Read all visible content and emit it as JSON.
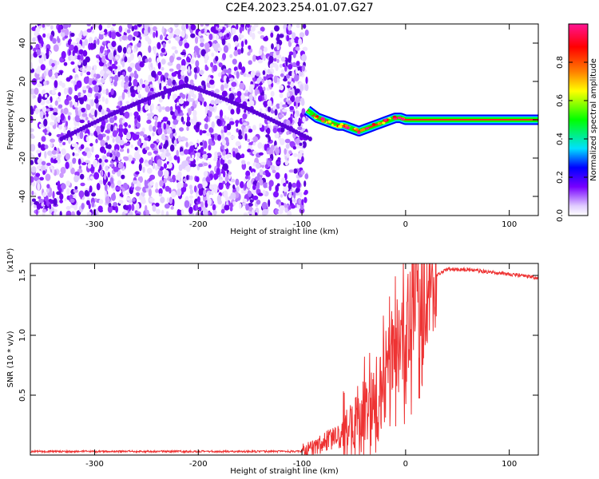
{
  "title": "C2E4.2023.254.01.07.G27",
  "chart_data": [
    {
      "type": "heatmap",
      "xlabel": "Height of straight line (km)",
      "ylabel": "Frequency (Hz)",
      "xlim": [
        -362,
        128
      ],
      "ylim": [
        -50,
        50
      ],
      "x_ticks": [
        -300,
        -200,
        -100,
        0,
        100
      ],
      "y_ticks": [
        -40,
        -20,
        0,
        20,
        40
      ],
      "colorbar": {
        "label": "Normalized spectral amplitude",
        "range": [
          0.0,
          1.0
        ],
        "ticks": [
          "0.0",
          "0.2",
          "0.4",
          "0.6",
          "0.8"
        ],
        "colors": [
          "#ffffff",
          "#cc99ff",
          "#7700ff",
          "#0000ff",
          "#00e0ff",
          "#00ff00",
          "#ffff00",
          "#ff8000",
          "#ff0000",
          "#ff1493"
        ]
      },
      "noise_region_x": [
        -362,
        -95
      ],
      "signal_trace": {
        "x": [
          -95,
          -90,
          -85,
          -80,
          -75,
          -70,
          -65,
          -60,
          -55,
          -50,
          -45,
          -40,
          -35,
          -30,
          -25,
          -20,
          -15,
          -10,
          -5,
          0,
          128
        ],
        "y": [
          5,
          3,
          1,
          0,
          -1,
          -2,
          -3,
          -3,
          -4,
          -5,
          -6,
          -5,
          -4,
          -3,
          -2,
          -1,
          0,
          1,
          1,
          0,
          0
        ]
      }
    },
    {
      "type": "line",
      "xlabel": "Height of straight line (km)",
      "ylabel": "SNR (10 * v/v)",
      "y_multiplier": "(x10⁴)",
      "xlim": [
        -362,
        128
      ],
      "ylim": [
        0,
        1.6
      ],
      "x_ticks": [
        -300,
        -200,
        -100,
        0,
        100
      ],
      "y_ticks": [
        0.5,
        1.0,
        1.5
      ],
      "y_tick_labels": [
        "0.5",
        "1.0",
        "1.5"
      ],
      "line_color": "#ee3333",
      "series": [
        {
          "x": [
            -362,
            -300,
            -200,
            -120,
            -105,
            -95,
            -85,
            -75,
            -65,
            -55,
            -45,
            -35,
            -30,
            -25,
            -20,
            -15,
            -10,
            -5,
            0,
            5,
            10,
            15,
            20,
            25,
            30,
            35,
            40,
            60,
            80,
            100,
            128
          ],
          "y": [
            0.03,
            0.03,
            0.03,
            0.03,
            0.03,
            0.04,
            0.08,
            0.12,
            0.15,
            0.2,
            0.25,
            0.35,
            0.45,
            0.55,
            0.65,
            0.75,
            0.85,
            0.95,
            1.05,
            1.15,
            1.25,
            1.33,
            1.4,
            1.45,
            1.5,
            1.53,
            1.55,
            1.55,
            1.53,
            1.51,
            1.48
          ]
        }
      ]
    }
  ]
}
